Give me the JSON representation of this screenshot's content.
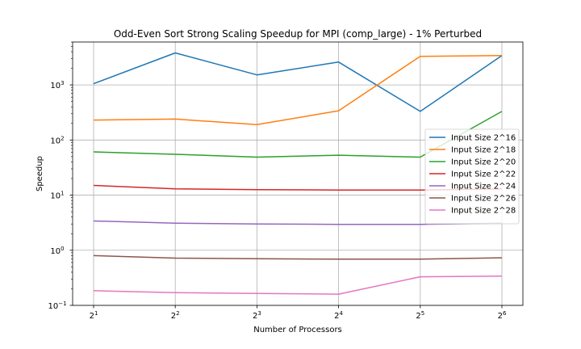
{
  "chart_data": {
    "type": "line",
    "title": "Odd-Even Sort Strong Scaling Speedup for MPI (comp_large) - 1% Perturbed",
    "xlabel": "Number of Processors",
    "ylabel": "Speedup",
    "x": [
      1,
      2,
      3,
      4,
      5,
      6
    ],
    "x_tick_base": "2",
    "x_tick_exponents": [
      "1",
      "2",
      "3",
      "4",
      "5",
      "6"
    ],
    "y_scale": "log",
    "ylim": [
      0.1,
      6000
    ],
    "y_tick_base": "10",
    "y_tick_exponents": [
      "−1",
      "0",
      "1",
      "2",
      "3"
    ],
    "grid": true,
    "legend_position": "right",
    "series": [
      {
        "name": "Input Size 2^16",
        "color": "#1f77b4",
        "values": [
          1050,
          3800,
          1520,
          2600,
          330,
          3400
        ]
      },
      {
        "name": "Input Size 2^18",
        "color": "#ff7f0e",
        "values": [
          230,
          240,
          190,
          340,
          3300,
          3400
        ]
      },
      {
        "name": "Input Size 2^20",
        "color": "#2ca02c",
        "values": [
          61,
          55,
          49,
          53,
          49,
          330
        ]
      },
      {
        "name": "Input Size 2^22",
        "color": "#d62728",
        "values": [
          15,
          13,
          12.6,
          12.4,
          12.4,
          13
        ]
      },
      {
        "name": "Input Size 2^24",
        "color": "#9467bd",
        "values": [
          3.4,
          3.1,
          3.0,
          2.95,
          2.95,
          3.1
        ]
      },
      {
        "name": "Input Size 2^26",
        "color": "#8c564b",
        "values": [
          0.8,
          0.72,
          0.7,
          0.69,
          0.69,
          0.73
        ]
      },
      {
        "name": "Input Size 2^28",
        "color": "#e377c2",
        "values": [
          0.185,
          0.17,
          0.165,
          0.16,
          0.33,
          0.34
        ]
      }
    ]
  }
}
